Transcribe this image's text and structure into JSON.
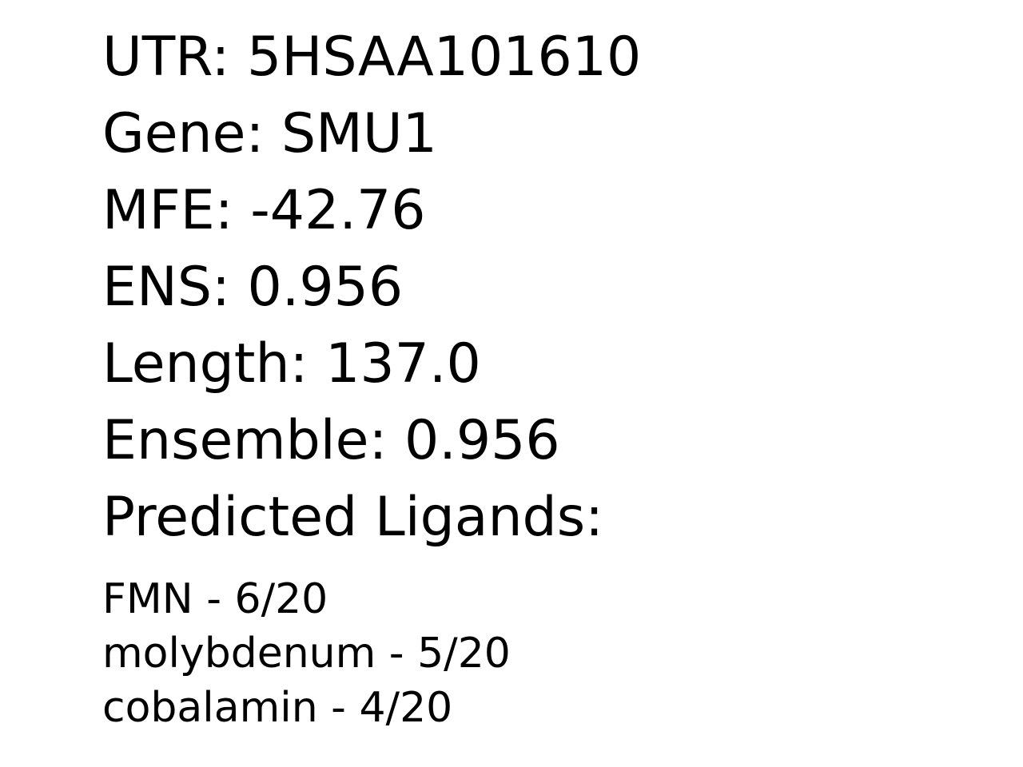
{
  "record": {
    "utr": "UTR: 5HSAA101610",
    "gene": "Gene: SMU1",
    "mfe": "MFE: -42.76",
    "ens": "ENS: 0.956",
    "length": "Length: 137.0",
    "ensemble": "Ensemble: 0.956",
    "ligands_heading": "Predicted Ligands:"
  },
  "ligands": [
    "FMN - 6/20",
    "molybdenum - 5/20",
    "cobalamin - 4/20"
  ]
}
